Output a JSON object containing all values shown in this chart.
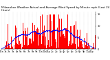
{
  "title": "Milwaukee Weather Actual and Average Wind Speed by Minute mph (Last 24 Hours)",
  "n_points": 1440,
  "bar_color": "#ff0000",
  "line_color": "#0000ff",
  "background_color": "#ffffff",
  "grid_color": "#bbbbbb",
  "ylim": [
    0,
    16
  ],
  "yticks": [
    0,
    5,
    10,
    15
  ],
  "ytick_labels": [
    "0",
    "5",
    "10",
    "15"
  ],
  "title_fontsize": 3.0,
  "tick_fontsize": 2.5,
  "fig_width": 1.6,
  "fig_height": 0.87,
  "dpi": 100
}
